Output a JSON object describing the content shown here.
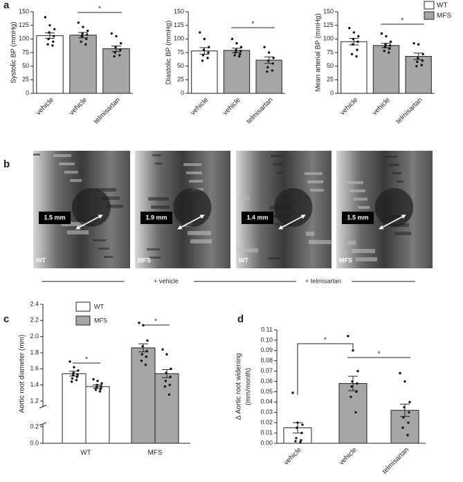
{
  "panel_labels": [
    "a",
    "b",
    "c",
    "d"
  ],
  "legend": [
    {
      "name": "WT",
      "color": "#ffffff"
    },
    {
      "name": "MFS",
      "color": "#a6a6a6"
    }
  ],
  "panel_b": {
    "scales": [
      "1.5 mm",
      "1.9 mm",
      "1.4 mm",
      "1.5 mm"
    ],
    "labels": [
      "WT",
      "MFS",
      "WT",
      "MFS"
    ],
    "groups": [
      "+ vehicle",
      "+ telmisartan"
    ]
  },
  "chart_data": [
    {
      "type": "bar",
      "ylabel": [
        "Systolic BP (mmHg)"
      ],
      "categories": [
        "vehicle",
        "vehicle",
        "telmisartan"
      ],
      "values": [
        106,
        107,
        82
      ],
      "errors": [
        5,
        5,
        5
      ],
      "colors": [
        "#ffffff",
        "#a6a6a6",
        "#a6a6a6"
      ],
      "points": [
        [
          140,
          125,
          118,
          112,
          105,
          100,
          95,
          90,
          88
        ],
        [
          130,
          122,
          115,
          110,
          108,
          105,
          100,
          95,
          90
        ],
        [
          110,
          105,
          92,
          85,
          80,
          75,
          70,
          68
        ]
      ],
      "ylim": [
        0,
        150
      ],
      "yticks": [
        0,
        25,
        50,
        75,
        100,
        125,
        150
      ],
      "annotations": [
        "*"
      ]
    },
    {
      "type": "bar",
      "ylabel": [
        "Diastolic BP (mmHg)"
      ],
      "categories": [
        "vehicle",
        "vehicle",
        "telmisartan"
      ],
      "values": [
        78,
        79,
        61
      ],
      "errors": [
        6,
        4,
        6
      ],
      "colors": [
        "#ffffff",
        "#a6a6a6",
        "#a6a6a6"
      ],
      "points": [
        [
          112,
          100,
          85,
          80,
          75,
          70,
          65,
          60
        ],
        [
          100,
          92,
          85,
          80,
          78,
          75,
          72,
          70,
          68
        ],
        [
          85,
          75,
          65,
          60,
          55,
          48,
          42,
          40
        ]
      ],
      "ylim": [
        0,
        150
      ],
      "yticks": [
        0,
        25,
        50,
        75,
        100,
        125,
        150
      ],
      "annotations": [
        "*"
      ]
    },
    {
      "type": "bar",
      "ylabel": [
        "Mean arterial BP (mmHg)"
      ],
      "categories": [
        "vehicle",
        "vehicle",
        "telmisartan"
      ],
      "values": [
        95,
        88,
        68
      ],
      "errors": [
        6,
        4,
        6
      ],
      "colors": [
        "#ffffff",
        "#a6a6a6",
        "#a6a6a6"
      ],
      "points": [
        [
          120,
          112,
          105,
          100,
          95,
          90,
          80,
          72,
          68
        ],
        [
          110,
          105,
          95,
          90,
          88,
          85,
          82,
          78,
          75
        ],
        [
          92,
          90,
          72,
          65,
          60,
          58,
          52,
          50
        ]
      ],
      "ylim": [
        0,
        150
      ],
      "yticks": [
        0,
        25,
        50,
        75,
        100,
        125,
        150
      ],
      "annotations": [
        "*"
      ]
    },
    {
      "type": "grouped_bar",
      "ylabel": [
        "Aortic root diameter (mm)"
      ],
      "categories": [
        "WT",
        "MFS"
      ],
      "series": [
        {
          "name": "WT",
          "color": "#ffffff",
          "values": [
            1.54,
            1.38
          ],
          "errors": [
            0.03,
            0.02
          ],
          "points": [
            [
              1.69,
              1.62,
              1.58,
              1.55,
              1.53,
              1.52,
              1.5,
              1.48,
              1.46,
              1.44
            ],
            [
              1.47,
              1.45,
              1.42,
              1.4,
              1.38,
              1.37,
              1.35,
              1.34,
              1.32
            ]
          ]
        },
        {
          "name": "MFS",
          "color": "#a6a6a6",
          "values": [
            1.86,
            1.54
          ],
          "errors": [
            0.05,
            0.05
          ],
          "points": [
            [
              2.17,
              2.14,
              1.95,
              1.88,
              1.82,
              1.78,
              1.75,
              1.7,
              1.65
            ],
            [
              1.84,
              1.78,
              1.6,
              1.55,
              1.5,
              1.45,
              1.4,
              1.38,
              1.28
            ]
          ]
        }
      ],
      "ylim": [
        0,
        2.4
      ],
      "ybreak": [
        0.2,
        1.2
      ],
      "yticks": [
        {
          "value": 0,
          "label": "0.0"
        },
        0.2,
        1.2,
        1.4,
        1.6,
        1.8,
        {
          "value": 2,
          "label": "2.0"
        },
        2.2,
        2.4
      ],
      "annotations": [
        "*",
        "*"
      ]
    },
    {
      "type": "bar",
      "ylabel": [
        "Δ Aortic root widening",
        "(mm/month)"
      ],
      "categories": [
        "vehicle",
        "vehicle",
        "telmisartan"
      ],
      "values": [
        0.015,
        0.058,
        0.032
      ],
      "errors": [
        0.005,
        0.007,
        0.006
      ],
      "colors": [
        "#ffffff",
        "#a6a6a6",
        "#a6a6a6"
      ],
      "points": [
        [
          0.049,
          0.02,
          0.018,
          0.015,
          0.01,
          0.005,
          0.003,
          0.002,
          0.001
        ],
        [
          0.104,
          0.09,
          0.07,
          0.06,
          0.058,
          0.055,
          0.05,
          0.045,
          0.03
        ],
        [
          0.068,
          0.06,
          0.04,
          0.035,
          0.03,
          0.025,
          0.02,
          0.015,
          0.008
        ]
      ],
      "ylim": [
        0,
        0.11
      ],
      "yticks": [
        {
          "value": 0,
          "label": "0.00"
        },
        {
          "value": 0.01,
          "label": "0.01"
        },
        {
          "value": 0.02,
          "label": "0.02"
        },
        {
          "value": 0.03,
          "label": "0.03"
        },
        {
          "value": 0.04,
          "label": "0.04"
        },
        {
          "value": 0.05,
          "label": "0.05"
        },
        {
          "value": 0.06,
          "label": "0.06"
        },
        {
          "value": 0.07,
          "label": "0.07"
        },
        {
          "value": 0.08,
          "label": "0.08"
        },
        {
          "value": 0.09,
          "label": "0.09"
        },
        {
          "value": 0.1,
          "label": "0.10"
        },
        {
          "value": 0.11,
          "label": "0.11"
        }
      ],
      "annotations": [
        "*",
        "*"
      ]
    }
  ]
}
